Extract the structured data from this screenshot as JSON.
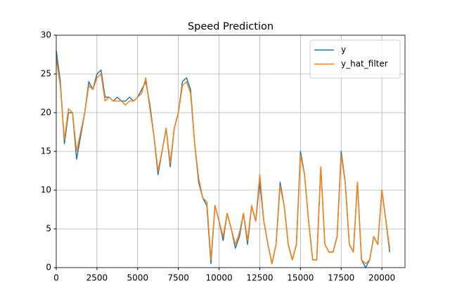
{
  "chart_data": {
    "type": "line",
    "title": "Speed Prediction",
    "x": [
      0,
      250,
      500,
      750,
      1000,
      1250,
      1500,
      1750,
      2000,
      2250,
      2500,
      2750,
      3000,
      3250,
      3500,
      3750,
      4000,
      4250,
      4500,
      4750,
      5000,
      5250,
      5500,
      5750,
      6000,
      6250,
      6500,
      6750,
      7000,
      7250,
      7500,
      7750,
      8000,
      8250,
      8500,
      8750,
      9000,
      9250,
      9500,
      9750,
      10000,
      10250,
      10500,
      10750,
      11000,
      11250,
      11500,
      11750,
      12000,
      12250,
      12500,
      12750,
      13000,
      13250,
      13500,
      13750,
      14000,
      14250,
      14500,
      14750,
      15000,
      15250,
      15500,
      15750,
      16000,
      16250,
      16500,
      16750,
      17000,
      17250,
      17500,
      17750,
      18000,
      18250,
      18500,
      18750,
      19000,
      19250,
      19500,
      19750,
      20000,
      20250,
      20480
    ],
    "series": [
      {
        "name": "y",
        "color": "#1f77b4",
        "values": [
          28,
          24,
          16,
          20,
          20,
          14,
          17,
          20,
          24,
          23,
          25,
          25.5,
          22,
          22,
          21.5,
          22,
          21.5,
          21.5,
          22,
          21.5,
          22,
          23,
          24,
          21,
          17,
          12,
          15,
          18,
          13,
          18,
          20,
          24,
          24.5,
          23,
          16,
          11,
          9,
          8,
          0.5,
          8,
          6,
          3.5,
          7,
          5,
          2.5,
          4,
          7,
          3,
          8,
          6,
          11,
          6,
          3,
          0.5,
          3,
          11,
          8,
          3,
          1,
          3,
          15,
          12,
          6,
          1,
          1,
          13,
          3,
          2,
          2,
          4,
          15,
          11,
          3,
          2,
          11,
          1,
          0,
          1,
          4,
          3,
          10,
          6,
          2
        ]
      },
      {
        "name": "y_hat_filter",
        "color": "#ff7f0e",
        "values": [
          27,
          23.5,
          16.5,
          20.5,
          20,
          15,
          17.5,
          20,
          23.5,
          23,
          24.5,
          25,
          21.5,
          22,
          21.5,
          21.5,
          21.5,
          21,
          21.5,
          21.5,
          22,
          22.5,
          24.5,
          20.5,
          17,
          12.5,
          15,
          18,
          13.5,
          18,
          20,
          23.5,
          24,
          22.5,
          16,
          11.5,
          9,
          8.5,
          1,
          8,
          6,
          4,
          7,
          5,
          3,
          4.5,
          7,
          3.5,
          8,
          6,
          12,
          6,
          3,
          0.5,
          3,
          10.5,
          8,
          3,
          1,
          3,
          14.5,
          12,
          6,
          1,
          1,
          13,
          3,
          2,
          2,
          4,
          14.5,
          11,
          3,
          2,
          11,
          1,
          0.5,
          1,
          4,
          3,
          10,
          6,
          2.5
        ]
      }
    ],
    "xlim": [
      0,
      21420
    ],
    "ylim": [
      0,
      30
    ],
    "xticks": [
      0,
      2500,
      5000,
      7500,
      10000,
      12500,
      15000,
      17500,
      20000
    ],
    "yticks": [
      0,
      5,
      10,
      15,
      20,
      25,
      30
    ],
    "grid": true,
    "legend": "upper right"
  }
}
